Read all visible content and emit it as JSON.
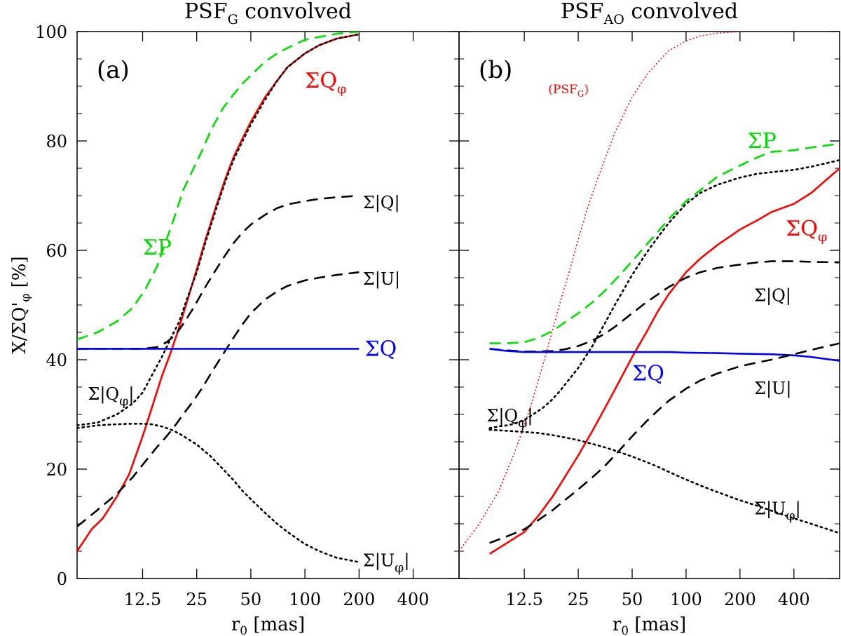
{
  "chart_data": [
    {
      "panel": "a",
      "type": "line",
      "title": "PSF_G convolved",
      "title_main": "PSF",
      "title_sub": "G",
      "title_rest": " convolved",
      "panel_label": "(a)",
      "xlabel_main": "r",
      "xlabel_sub": "0",
      "xlabel_rest": " [mas]",
      "ylabel": "X/ΣQ'_φ [%]",
      "ylabel_main": "X/ΣQ'",
      "ylabel_sub": "φ",
      "ylabel_rest": " [%]",
      "xscale": "log2",
      "xlim": [
        5.4,
        720
      ],
      "ylim": [
        0,
        100
      ],
      "xticks": [
        12.5,
        25,
        50,
        100,
        200,
        400
      ],
      "xtick_labels": [
        "12.5",
        "25",
        "50",
        "100",
        "200",
        "400"
      ],
      "yticks": [
        0,
        20,
        40,
        60,
        80,
        100
      ],
      "ytick_labels": [
        "0",
        "20",
        "40",
        "60",
        "80",
        "100"
      ],
      "series": [
        {
          "name": "ΣP",
          "color": "#00dd00",
          "style": "dashed",
          "x": [
            5.4,
            7,
            9,
            11,
            13,
            15,
            17,
            19,
            21,
            24,
            27,
            30,
            35,
            40,
            45,
            50,
            60,
            70,
            80,
            100,
            120,
            150,
            200
          ],
          "y": [
            43.7,
            45,
            47,
            49.5,
            53,
            57,
            62,
            66.5,
            71,
            75,
            78.5,
            82,
            86,
            88.5,
            90.5,
            92,
            94.5,
            96,
            97,
            98.5,
            99,
            99.6,
            100
          ]
        },
        {
          "name": "ΣQ_φ",
          "color": "#ff0000",
          "style": "solid",
          "x": [
            5.4,
            6.5,
            7.5,
            9,
            10.5,
            12.5,
            14,
            16,
            18,
            20,
            22,
            25,
            28,
            32,
            36,
            40,
            45,
            50,
            60,
            70,
            80,
            100,
            120,
            150,
            200
          ],
          "y": [
            5,
            9,
            11,
            15,
            19,
            26,
            31,
            37,
            41.5,
            46,
            50.5,
            56.5,
            62,
            68,
            73,
            77,
            80.5,
            83.5,
            88,
            91,
            93.5,
            96,
            97.5,
            98.7,
            99.5
          ]
        },
        {
          "name": "Σ|Q|",
          "color": "#000000",
          "style": "dashed",
          "x": [
            5.4,
            8,
            10,
            12.5,
            15,
            17,
            19,
            21,
            24,
            27,
            30,
            35,
            40,
            45,
            50,
            60,
            70,
            80,
            100,
            120,
            150,
            200
          ],
          "y": [
            42,
            42,
            42,
            42,
            42.3,
            43.2,
            44.5,
            46.5,
            49.5,
            52.5,
            55,
            58.5,
            61.3,
            63.3,
            64.7,
            66.5,
            67.7,
            68.4,
            69,
            69.4,
            69.7,
            70
          ]
        },
        {
          "name": "Σ|U|",
          "color": "#000000",
          "style": "dashed",
          "x": [
            5.4,
            7,
            9,
            11,
            13,
            15,
            17,
            19,
            21,
            24,
            27,
            30,
            35,
            40,
            45,
            50,
            60,
            70,
            80,
            100,
            120,
            150,
            200
          ],
          "y": [
            9.5,
            12.5,
            15.5,
            18.5,
            21.5,
            24,
            26,
            28,
            30,
            32.5,
            35,
            37.5,
            41,
            44,
            46.5,
            48.5,
            51,
            52.5,
            53.5,
            54.5,
            55,
            55.5,
            56
          ]
        },
        {
          "name": "ΣQ",
          "color": "#0000ff",
          "style": "solid",
          "x": [
            5.4,
            200
          ],
          "y": [
            42,
            42
          ]
        },
        {
          "name": "Σ|Q_φ|",
          "color": "#000000",
          "style": "dotted",
          "x": [
            5.4,
            7,
            9,
            11,
            12.5,
            14,
            16,
            18,
            20,
            22,
            25,
            28,
            32,
            36,
            40,
            45,
            50,
            60,
            70,
            80,
            100,
            120,
            150,
            200
          ],
          "y": [
            28,
            28.5,
            30,
            32,
            34,
            37,
            40.5,
            44,
            47,
            51,
            56,
            61.5,
            67.5,
            72.5,
            76.5,
            80,
            83,
            87.5,
            91,
            93.5,
            96,
            97.5,
            98.7,
            99.5
          ]
        },
        {
          "name": "Σ|U_φ|",
          "color": "#000000",
          "style": "dotted",
          "x": [
            5.4,
            7,
            9,
            11,
            12.5,
            14,
            16,
            18,
            20,
            25,
            30,
            35,
            40,
            45,
            50,
            60,
            70,
            80,
            100,
            120,
            150,
            200
          ],
          "y": [
            27.5,
            28,
            28.2,
            28.3,
            28.3,
            28.2,
            27.8,
            27.2,
            26.5,
            24.5,
            22.3,
            20,
            18,
            16,
            14.5,
            12,
            10,
            8.5,
            6.3,
            5,
            3.8,
            3
          ]
        }
      ],
      "annotations": [
        {
          "text": "ΣQ",
          "sub": "φ",
          "color": "#ff0000",
          "x": 100,
          "y": 91
        },
        {
          "text": "ΣP",
          "sub": "",
          "color": "#00dd00",
          "x": 12.5,
          "y": 60.5
        },
        {
          "text": "Σ|Q|",
          "sub": "",
          "color": "#000000",
          "x": 210,
          "y": 69
        },
        {
          "text": "Σ|U|",
          "sub": "",
          "color": "#000000",
          "x": 210,
          "y": 55
        },
        {
          "text": "ΣQ",
          "sub": "",
          "color": "#0000ff",
          "x": 215,
          "y": 42
        },
        {
          "text": "Σ|Q",
          "sub": "φ",
          "tail": "|",
          "color": "#000000",
          "x": 6.2,
          "y": 34
        },
        {
          "text": "Σ|U",
          "sub": "φ",
          "tail": "|",
          "color": "#000000",
          "x": 210,
          "y": 3.5
        }
      ]
    },
    {
      "panel": "b",
      "type": "line",
      "title": "PSF_AO convolved",
      "title_main": "PSF",
      "title_sub": "AO",
      "title_rest": " convolved",
      "panel_label": "(b)",
      "xlabel_main": "r",
      "xlabel_sub": "0",
      "xlabel_rest": " [mas]",
      "xscale": "log2",
      "xlim": [
        5.4,
        720
      ],
      "ylim": [
        0,
        100
      ],
      "xticks": [
        12.5,
        25,
        50,
        100,
        200,
        400
      ],
      "xtick_labels": [
        "12.5",
        "25",
        "50",
        "100",
        "200",
        "400"
      ],
      "yticks": [
        0,
        20,
        40,
        60,
        80,
        100
      ],
      "series": [
        {
          "name": "(PSF_G)",
          "color": "#ff0000",
          "style": "dotted-thin",
          "x": [
            5.4,
            7,
            9,
            11,
            12.5,
            14,
            16,
            18,
            20,
            22,
            25,
            28,
            32,
            36,
            40,
            45,
            50,
            60,
            70,
            80,
            100,
            120,
            150,
            200
          ],
          "y": [
            5,
            10,
            16,
            23,
            28,
            33,
            39.5,
            45.5,
            51,
            55.5,
            62,
            67.5,
            73,
            77.5,
            81.5,
            85,
            88,
            92,
            94.5,
            96.5,
            98.3,
            99.2,
            99.7,
            100
          ]
        },
        {
          "name": "ΣP",
          "color": "#00dd00",
          "style": "dashed",
          "x": [
            8,
            10,
            12.5,
            15,
            18,
            21,
            25,
            30,
            35,
            40,
            50,
            60,
            70,
            80,
            100,
            120,
            150,
            200,
            250,
            300,
            400,
            500,
            720
          ],
          "y": [
            43,
            43,
            43.2,
            44,
            45.3,
            46.8,
            48.5,
            50.5,
            52.5,
            54.5,
            58,
            61,
            63.5,
            65.7,
            69,
            71,
            73.5,
            75.5,
            77,
            78,
            78.3,
            78.8,
            79.5
          ]
        },
        {
          "name": "Σ|Q_φ| (upper)",
          "color": "#000000",
          "style": "dotted",
          "x": [
            8,
            9,
            10,
            11,
            12.5,
            14,
            16,
            18,
            20,
            25,
            30,
            35,
            40,
            50,
            60,
            70,
            80,
            100,
            120,
            150,
            200,
            250,
            300,
            400,
            500,
            720
          ],
          "y": [
            27.5,
            27.8,
            28,
            28.3,
            29,
            30,
            31.3,
            32.8,
            34.5,
            38.5,
            42.5,
            46.5,
            50,
            55.5,
            59.5,
            62.5,
            65,
            68.5,
            70.5,
            72,
            73.3,
            74,
            74.3,
            74.7,
            75.3,
            76.5
          ]
        },
        {
          "name": "ΣQ_φ",
          "color": "#ff0000",
          "style": "solid",
          "x": [
            8,
            10,
            12.5,
            15,
            18,
            21,
            25,
            30,
            35,
            40,
            50,
            60,
            70,
            80,
            100,
            120,
            150,
            200,
            250,
            300,
            400,
            500,
            720
          ],
          "y": [
            4.5,
            6.5,
            8.5,
            11.5,
            15,
            18.5,
            22.5,
            27,
            31,
            34.5,
            40.5,
            45,
            49,
            52,
            56,
            58.5,
            61,
            63.8,
            65.5,
            67,
            68.5,
            70.5,
            75
          ]
        },
        {
          "name": "Σ|Q|",
          "color": "#000000",
          "style": "dashed",
          "x": [
            8,
            10,
            12.5,
            15,
            18,
            21,
            25,
            30,
            35,
            40,
            50,
            60,
            70,
            80,
            100,
            120,
            150,
            200,
            250,
            300,
            400,
            500,
            720
          ],
          "y": [
            42,
            41.7,
            41.5,
            41.5,
            41.6,
            41.9,
            42.5,
            43.5,
            44.7,
            46,
            48.5,
            50.5,
            52,
            53.3,
            55,
            56,
            56.8,
            57.4,
            57.8,
            58,
            58,
            57.9,
            57.8
          ]
        },
        {
          "name": "ΣQ",
          "color": "#0000ff",
          "style": "solid",
          "x": [
            8,
            10,
            12.5,
            20,
            40,
            80,
            100,
            150,
            200,
            300,
            400,
            500,
            720
          ],
          "y": [
            42,
            41.6,
            41.4,
            41.4,
            41.4,
            41.4,
            41.3,
            41.2,
            41.1,
            41,
            40.8,
            40.5,
            39.8
          ]
        },
        {
          "name": "Σ|U|",
          "color": "#000000",
          "style": "dashed",
          "x": [
            8,
            10,
            12.5,
            15,
            18,
            21,
            25,
            30,
            35,
            40,
            50,
            60,
            70,
            80,
            100,
            120,
            150,
            200,
            250,
            300,
            400,
            500,
            720
          ],
          "y": [
            6.5,
            7.7,
            9,
            10.7,
            12.5,
            14.3,
            16.3,
            18.5,
            20.5,
            22.5,
            26,
            28.7,
            30.8,
            32.5,
            34.7,
            36.2,
            37.5,
            38.8,
            39.5,
            40,
            41,
            41.8,
            43
          ]
        },
        {
          "name": "Σ|U_φ|",
          "color": "#000000",
          "style": "dotted",
          "x": [
            8,
            10,
            12.5,
            15,
            18,
            21,
            25,
            30,
            35,
            40,
            50,
            60,
            70,
            80,
            100,
            120,
            150,
            200,
            250,
            300,
            400,
            500,
            720
          ],
          "y": [
            27.2,
            27,
            26.8,
            26.6,
            26.2,
            25.8,
            25.3,
            24.6,
            24,
            23.4,
            22.3,
            21.3,
            20.4,
            19.5,
            18.1,
            17,
            15.8,
            14.3,
            13.3,
            12.4,
            11,
            10,
            8.3
          ]
        }
      ],
      "annotations": [
        {
          "text": "(PSF",
          "sub": "G",
          "tail": ")",
          "color": "#ff0000",
          "x": 17,
          "y": 89.5
        },
        {
          "text": "ΣP",
          "sub": "",
          "color": "#00dd00",
          "x": 220,
          "y": 80
        },
        {
          "text": "ΣQ",
          "sub": "φ",
          "color": "#ff0000",
          "x": 360,
          "y": 64
        },
        {
          "text": "Σ|Q|",
          "sub": "",
          "color": "#000000",
          "x": 240,
          "y": 52
        },
        {
          "text": "ΣQ",
          "sub": "",
          "color": "#0000ff",
          "x": 50,
          "y": 37.5
        },
        {
          "text": "Σ|U|",
          "sub": "",
          "color": "#000000",
          "x": 240,
          "y": 35
        },
        {
          "text": "Σ|Q",
          "sub": "φ",
          "tail": "|",
          "color": "#000000",
          "x": 7.7,
          "y": 30
        },
        {
          "text": "Σ|U",
          "sub": "φ",
          "tail": "|",
          "color": "#000000",
          "x": 240,
          "y": 13
        }
      ]
    }
  ]
}
